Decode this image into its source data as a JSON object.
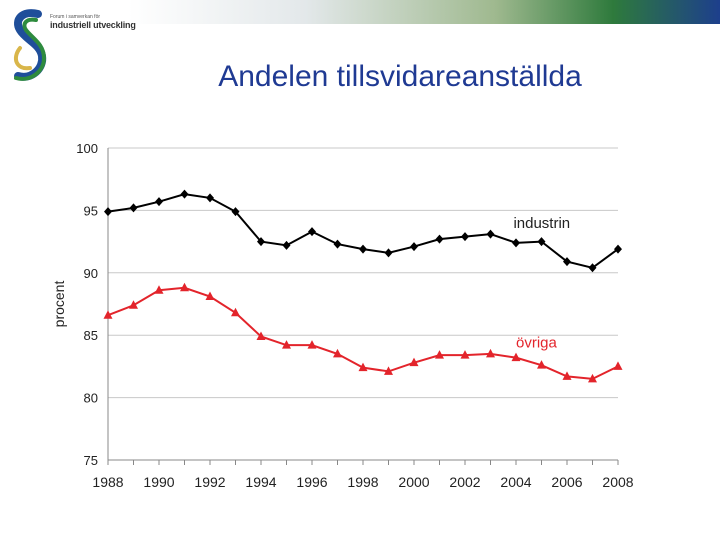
{
  "header": {
    "org_small": "Forum i samverkan för",
    "org_name": "industriell utveckling",
    "title": "Andelen tillsvidareanställda"
  },
  "chart_data": {
    "type": "line",
    "ylabel": "procent",
    "xlabel": "",
    "ylim": [
      75,
      100
    ],
    "xlim": [
      1988,
      2008
    ],
    "yticks": [
      75,
      80,
      85,
      90,
      95,
      100
    ],
    "xticks": [
      1988,
      1990,
      1992,
      1994,
      1996,
      1998,
      2000,
      2002,
      2004,
      2006,
      2008
    ],
    "grid": true,
    "x": [
      1988,
      1989,
      1990,
      1991,
      1992,
      1993,
      1994,
      1995,
      1996,
      1997,
      1998,
      1999,
      2000,
      2001,
      2002,
      2003,
      2004,
      2005,
      2006,
      2007,
      2008
    ],
    "series": [
      {
        "name": "industrin",
        "color": "#000000",
        "marker": "diamond",
        "values": [
          94.9,
          95.2,
          95.7,
          96.3,
          96.0,
          94.9,
          92.5,
          92.2,
          93.3,
          92.3,
          91.9,
          91.6,
          92.1,
          92.7,
          92.9,
          93.1,
          92.4,
          92.5,
          90.9,
          90.4,
          91.9
        ]
      },
      {
        "name": "övriga",
        "color": "#e3242b",
        "marker": "triangle",
        "values": [
          86.6,
          87.4,
          88.6,
          88.8,
          88.1,
          86.8,
          84.9,
          84.2,
          84.2,
          83.5,
          82.4,
          82.1,
          82.8,
          83.4,
          83.4,
          83.5,
          83.2,
          82.6,
          81.7,
          81.5,
          82.5
        ]
      }
    ]
  }
}
